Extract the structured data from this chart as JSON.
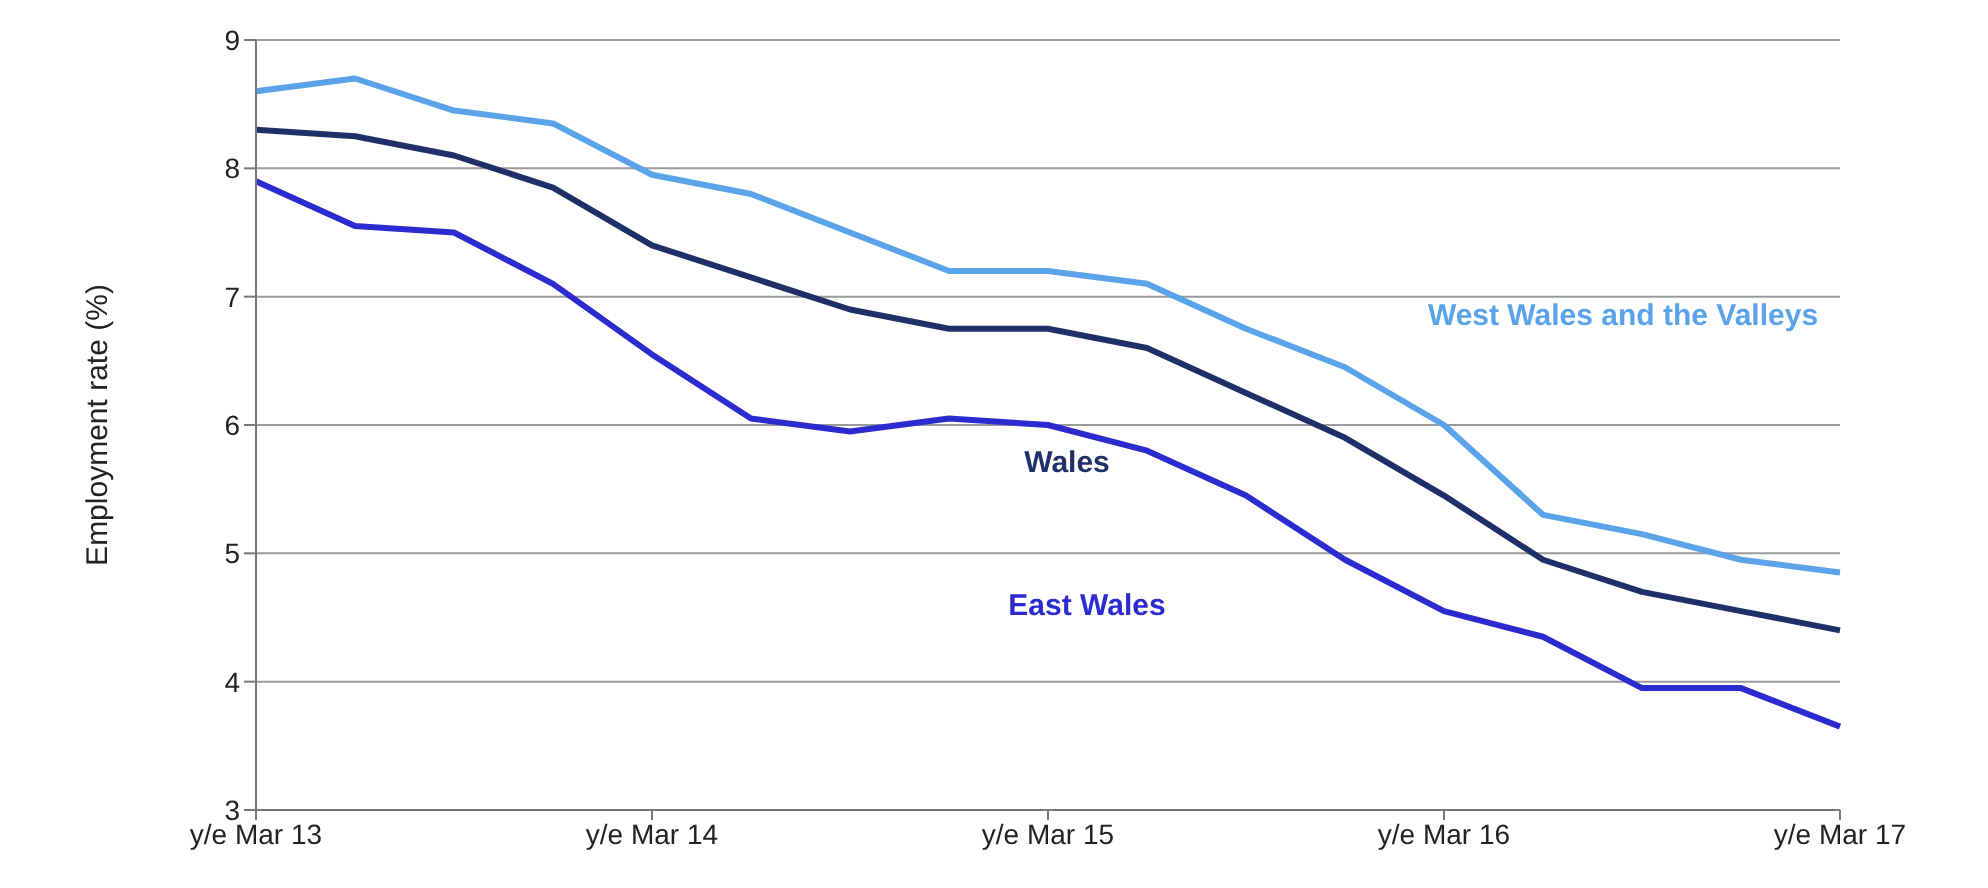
{
  "chart_data": {
    "type": "line",
    "ylabel": "Employment rate (%)",
    "categories": [
      "y/e Mar 13",
      null,
      null,
      null,
      "y/e Mar 14",
      null,
      null,
      null,
      "y/e Mar 15",
      null,
      null,
      null,
      "y/e Mar 16",
      null,
      null,
      null,
      "y/e Mar 17"
    ],
    "series": [
      {
        "name": "West Wales and the Valleys",
        "color": "#5aa3e8",
        "values": [
          8.6,
          8.7,
          8.45,
          8.35,
          7.95,
          7.8,
          7.5,
          7.2,
          7.2,
          7.1,
          6.75,
          6.45,
          6.0,
          5.3,
          5.15,
          4.95,
          4.85
        ]
      },
      {
        "name": "Wales",
        "color": "#1f3068",
        "values": [
          8.3,
          8.25,
          8.1,
          7.85,
          7.4,
          7.15,
          6.9,
          6.75,
          6.75,
          6.6,
          6.25,
          5.9,
          5.45,
          4.95,
          4.7,
          4.55,
          4.4
        ]
      },
      {
        "name": "East Wales",
        "color": "#2b2bd0",
        "values": [
          7.9,
          7.55,
          7.5,
          7.1,
          6.55,
          6.05,
          5.95,
          6.05,
          6.0,
          5.8,
          5.45,
          4.95,
          4.55,
          4.35,
          3.95,
          3.95,
          3.65
        ]
      }
    ],
    "ylim": [
      3,
      9
    ],
    "yticks": [
      3,
      4,
      5,
      6,
      7,
      8,
      9
    ],
    "grid": "y",
    "marker": "none",
    "line_style": "solid"
  }
}
